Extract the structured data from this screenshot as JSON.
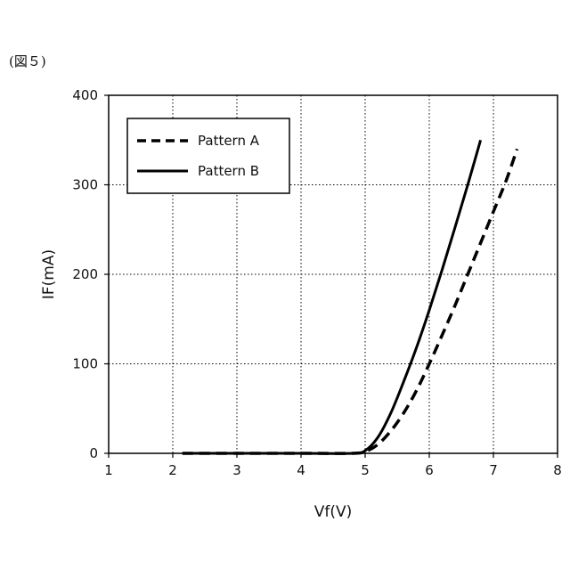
{
  "figure_label": "(図５)",
  "chart_data": {
    "type": "line",
    "title": "",
    "xlabel": "Vf(V)",
    "ylabel": "IF(mA)",
    "xlim": [
      1,
      8
    ],
    "ylim": [
      0,
      400
    ],
    "x_ticks": [
      1,
      2,
      3,
      4,
      5,
      6,
      7,
      8
    ],
    "y_ticks": [
      0,
      100,
      200,
      300,
      400
    ],
    "grid": true,
    "grid_style": "dotted",
    "legend_position": "top-left",
    "series": [
      {
        "name": "Pattern A",
        "style": "dashed",
        "color": "#000000",
        "x": [
          2.15,
          3,
          4,
          4.8,
          5.0,
          5.2,
          5.4,
          5.6,
          5.8,
          6.0,
          6.2,
          6.4,
          6.6,
          6.8,
          7.0,
          7.2,
          7.37
        ],
        "y": [
          0,
          0,
          0,
          0,
          2,
          10,
          25,
          45,
          70,
          100,
          132,
          165,
          200,
          235,
          270,
          305,
          340
        ]
      },
      {
        "name": "Pattern B",
        "style": "solid",
        "color": "#000000",
        "x": [
          2.15,
          3,
          4,
          4.8,
          5.0,
          5.2,
          5.4,
          5.6,
          5.8,
          6.0,
          6.2,
          6.4,
          6.6,
          6.8
        ],
        "y": [
          0,
          0,
          0,
          0,
          3,
          18,
          45,
          80,
          118,
          160,
          205,
          252,
          300,
          350
        ]
      }
    ]
  }
}
